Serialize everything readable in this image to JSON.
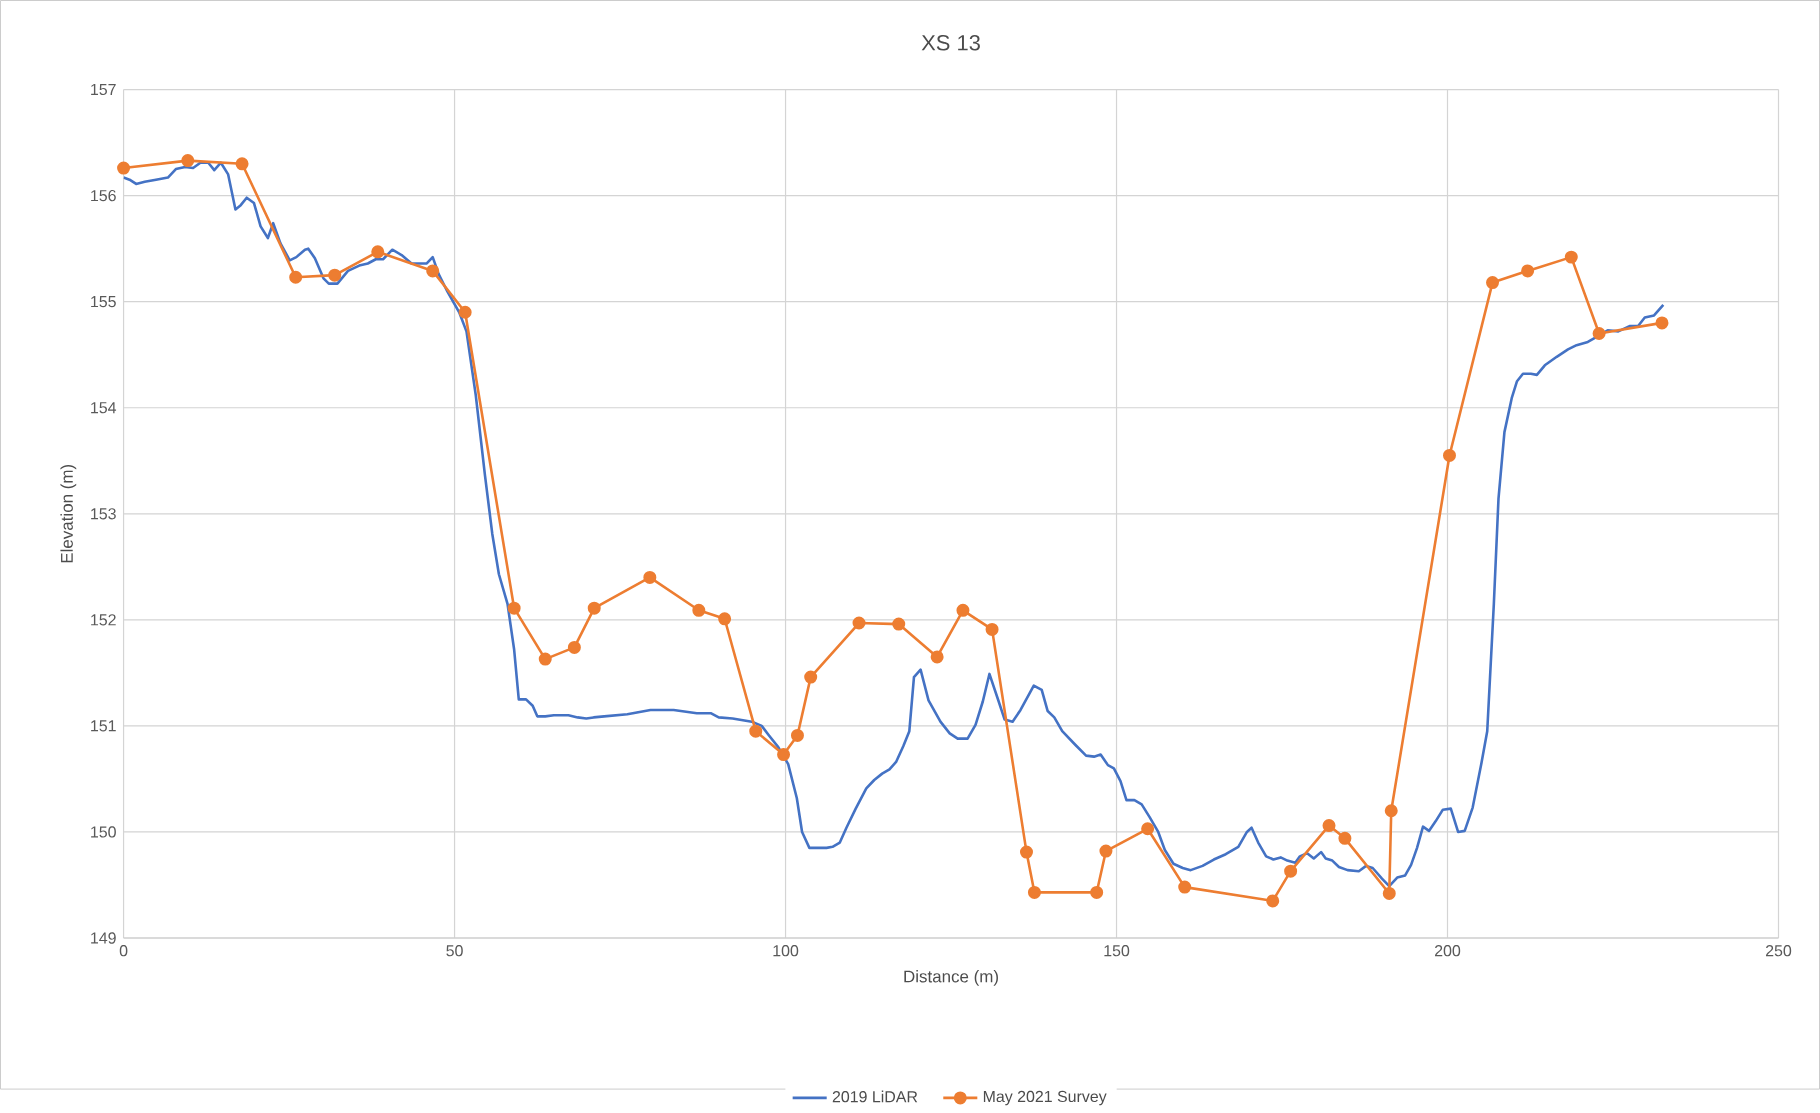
{
  "chart_data": {
    "type": "line",
    "title": "XS 13",
    "xlabel": "Distance (m)",
    "ylabel": "Elevation (m)",
    "xlim": [
      0,
      250
    ],
    "xticks": [
      0,
      50,
      100,
      150,
      200,
      250
    ],
    "ylim": [
      149,
      157
    ],
    "yticks": [
      149,
      150,
      151,
      152,
      153,
      154,
      155,
      156,
      157
    ],
    "grid": true,
    "legend": "bottom",
    "series": [
      {
        "name": "2019 LiDAR",
        "color": "#4472c4",
        "marker": "none",
        "x": [
          0,
          0.9,
          1.9,
          3.2,
          4.9,
          6.7,
          7.9,
          9.3,
          10.5,
          11.6,
          12.8,
          13.7,
          14.7,
          15.8,
          16.9,
          17.7,
          18.6,
          19.7,
          20.7,
          21.8,
          22.6,
          23.7,
          25.1,
          26.1,
          27.4,
          27.9,
          28.9,
          30.2,
          31.0,
          32.3,
          33.9,
          35.6,
          36.9,
          38.1,
          39.2,
          40.6,
          42.0,
          43.5,
          45.0,
          45.8,
          46.7,
          47.6,
          48.8,
          50.7,
          51.8,
          53.2,
          54.6,
          55.7,
          56.7,
          58.0,
          59.0,
          59.7,
          60.8,
          61.8,
          62.5,
          63.7,
          65.0,
          66.2,
          67.2,
          68.6,
          69.9,
          71.0,
          72.6,
          76.1,
          79.6,
          83.1,
          86.6,
          88.7,
          89.9,
          92.0,
          94.9,
          96.4,
          97.5,
          98.9,
          100.4,
          101.7,
          102.5,
          103.6,
          105.0,
          106.2,
          107.1,
          108.2,
          109.2,
          110.6,
          112.2,
          113.4,
          114.6,
          115.7,
          116.7,
          117.8,
          118.7,
          119.4,
          120.4,
          121.6,
          123.4,
          124.8,
          126.0,
          127.5,
          128.7,
          129.8,
          130.8,
          132.2,
          133.1,
          134.3,
          135.5,
          137.5,
          138.7,
          139.6,
          140.6,
          141.8,
          143.8,
          145.4,
          146.6,
          147.6,
          148.7,
          149.6,
          150.6,
          151.5,
          152.7,
          153.8,
          155.0,
          156.3,
          157.3,
          158.6,
          160.0,
          161.2,
          163.0,
          164.7,
          166.5,
          168.4,
          169.7,
          170.4,
          171.4,
          172.6,
          173.7,
          174.8,
          175.8,
          177.0,
          177.7,
          178.8,
          179.8,
          180.9,
          181.6,
          182.6,
          183.6,
          184.9,
          186.6,
          187.7,
          188.7,
          190.1,
          191.2,
          192.4,
          193.6,
          194.5,
          195.4,
          196.3,
          197.2,
          198.2,
          199.3,
          200.5,
          201.6,
          202.6,
          203.8,
          205.1,
          206.0,
          207.0,
          207.7,
          208.6,
          209.7,
          210.5,
          211.4,
          212.6,
          213.5,
          214.7,
          216.5,
          218.2,
          219.5,
          221.2,
          222.6,
          224.2,
          225.8,
          227.5,
          228.8,
          229.8,
          231.2,
          232.6
        ],
        "values": [
          156.17,
          156.15,
          156.11,
          156.13,
          156.15,
          156.17,
          156.25,
          156.27,
          156.26,
          156.31,
          156.31,
          156.24,
          156.31,
          156.2,
          155.87,
          155.91,
          155.98,
          155.93,
          155.71,
          155.6,
          155.74,
          155.55,
          155.39,
          155.42,
          155.49,
          155.5,
          155.41,
          155.22,
          155.17,
          155.17,
          155.29,
          155.34,
          155.36,
          155.4,
          155.4,
          155.49,
          155.44,
          155.36,
          155.36,
          155.36,
          155.42,
          155.26,
          155.11,
          154.9,
          154.72,
          154.12,
          153.36,
          152.81,
          152.43,
          152.15,
          151.72,
          151.25,
          151.25,
          151.19,
          151.09,
          151.09,
          151.1,
          151.1,
          151.1,
          151.08,
          151.07,
          151.08,
          151.09,
          151.11,
          151.15,
          151.15,
          151.12,
          151.12,
          151.08,
          151.07,
          151.04,
          151.0,
          150.91,
          150.8,
          150.64,
          150.32,
          150.0,
          149.85,
          149.85,
          149.85,
          149.86,
          149.9,
          150.04,
          150.22,
          150.41,
          150.49,
          150.55,
          150.59,
          150.66,
          150.81,
          150.95,
          151.46,
          151.53,
          151.24,
          151.04,
          150.93,
          150.88,
          150.88,
          151.01,
          151.23,
          151.49,
          151.23,
          151.06,
          151.04,
          151.15,
          151.38,
          151.34,
          151.14,
          151.08,
          150.95,
          150.82,
          150.72,
          150.71,
          150.73,
          150.63,
          150.6,
          150.48,
          150.3,
          150.3,
          150.26,
          150.14,
          150.0,
          149.83,
          149.7,
          149.66,
          149.64,
          149.68,
          149.74,
          149.79,
          149.86,
          150.0,
          150.04,
          149.9,
          149.77,
          149.74,
          149.76,
          149.73,
          149.71,
          149.77,
          149.8,
          149.75,
          149.81,
          149.75,
          149.73,
          149.67,
          149.64,
          149.63,
          149.68,
          149.66,
          149.56,
          149.49,
          149.57,
          149.59,
          149.69,
          149.85,
          150.05,
          150.01,
          150.1,
          150.21,
          150.22,
          150.0,
          150.01,
          150.23,
          150.64,
          150.95,
          152.15,
          153.14,
          153.77,
          154.09,
          154.25,
          154.32,
          154.32,
          154.31,
          154.4,
          154.48,
          154.55,
          154.59,
          154.62,
          154.67,
          154.73,
          154.72,
          154.77,
          154.77,
          154.85,
          154.87,
          154.97
        ]
      },
      {
        "name": "May 2021 Survey",
        "color": "#ed7d31",
        "marker": "circle",
        "x": [
          0,
          9.7,
          17.9,
          26.0,
          31.9,
          38.4,
          46.7,
          51.6,
          59.0,
          63.7,
          68.1,
          71.1,
          79.5,
          86.9,
          90.8,
          95.5,
          99.7,
          101.8,
          103.8,
          111.1,
          117.1,
          122.9,
          126.8,
          131.2,
          136.4,
          137.6,
          147.0,
          148.4,
          154.7,
          160.3,
          173.6,
          176.3,
          182.1,
          184.5,
          191.2,
          191.5,
          200.3,
          206.8,
          212.1,
          218.7,
          222.9,
          232.4
        ],
        "values": [
          156.26,
          156.33,
          156.3,
          155.23,
          155.25,
          155.47,
          155.29,
          154.9,
          152.11,
          151.63,
          151.74,
          152.11,
          152.4,
          152.09,
          152.01,
          150.95,
          150.73,
          150.91,
          151.46,
          151.97,
          151.96,
          151.65,
          152.09,
          151.91,
          149.81,
          149.43,
          149.43,
          149.82,
          150.03,
          149.48,
          149.35,
          149.63,
          150.06,
          149.94,
          149.42,
          150.2,
          153.55,
          155.18,
          155.29,
          155.42,
          154.7,
          154.8
        ]
      }
    ]
  }
}
